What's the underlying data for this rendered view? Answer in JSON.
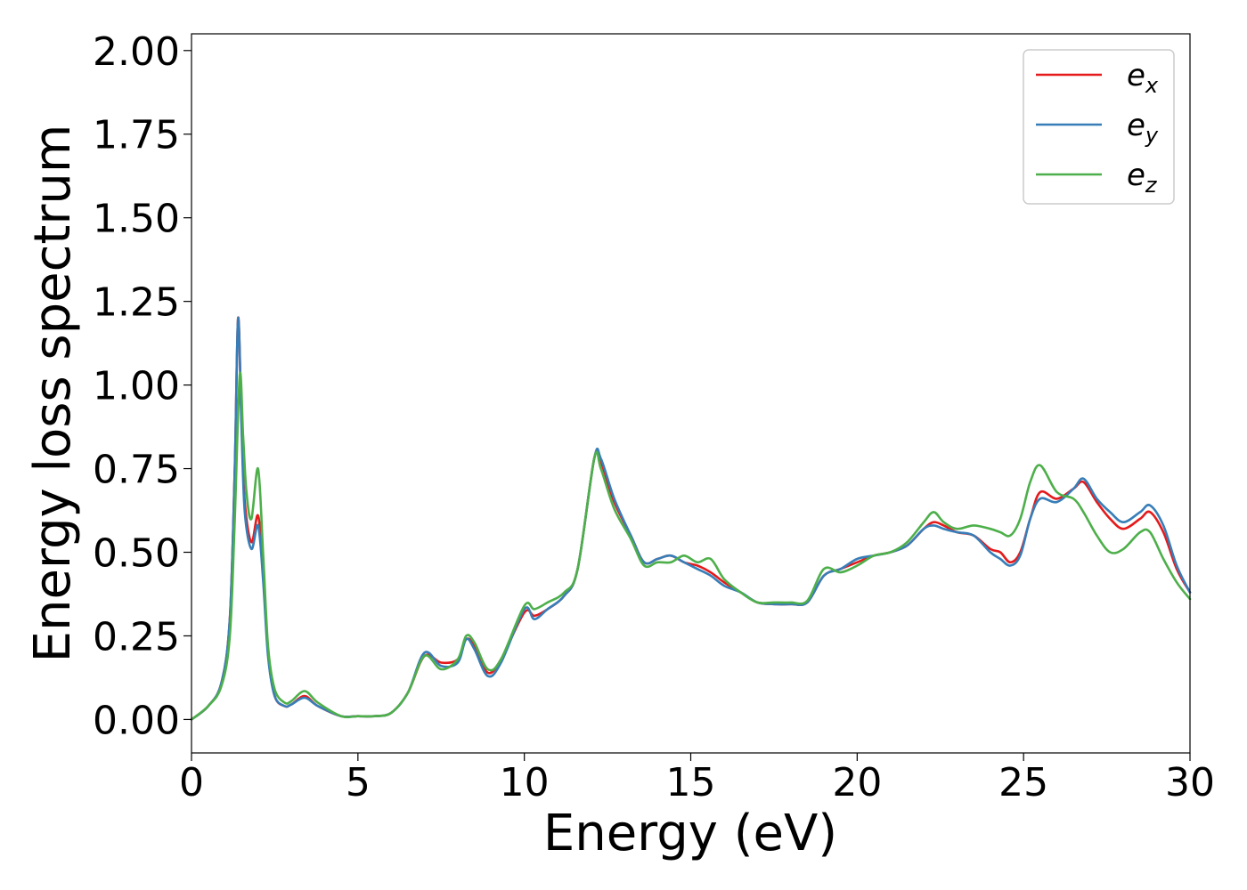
{
  "chart_data": {
    "type": "line",
    "title": "",
    "xlabel": "Energy (eV)",
    "ylabel": "Energy loss spectrum",
    "xlim": [
      0,
      30
    ],
    "ylim": [
      -0.1,
      2.05
    ],
    "xticks": [
      0,
      5,
      10,
      15,
      20,
      25,
      30
    ],
    "xtick_labels": [
      "0",
      "5",
      "10",
      "15",
      "20",
      "25",
      "30"
    ],
    "yticks": [
      0.0,
      0.25,
      0.5,
      0.75,
      1.0,
      1.25,
      1.5,
      1.75,
      2.0
    ],
    "ytick_labels": [
      "0.00",
      "0.25",
      "0.50",
      "0.75",
      "1.00",
      "1.25",
      "1.50",
      "1.75",
      "2.00"
    ],
    "grid": false,
    "legend_position": "top-right",
    "series": [
      {
        "name": "e_x",
        "label_base": "e",
        "label_sub": "x",
        "color": "#e41a1c",
        "x": [
          0,
          0.5,
          0.9,
          1.15,
          1.3,
          1.4,
          1.5,
          1.6,
          1.8,
          2.0,
          2.15,
          2.3,
          2.5,
          2.8,
          3.0,
          3.4,
          3.8,
          4.5,
          5.0,
          5.5,
          6.0,
          6.5,
          7.0,
          7.5,
          8.0,
          8.25,
          8.5,
          8.9,
          9.3,
          10.0,
          10.3,
          10.7,
          11.2,
          11.6,
          12.1,
          12.3,
          12.7,
          13.2,
          13.6,
          14.0,
          14.4,
          14.8,
          15.2,
          15.6,
          16.0,
          16.5,
          17.0,
          17.5,
          18.0,
          18.5,
          19.0,
          19.5,
          20.0,
          20.5,
          21.0,
          21.5,
          22.0,
          22.3,
          22.6,
          23.0,
          23.5,
          24.0,
          24.3,
          24.6,
          24.9,
          25.2,
          25.5,
          26.0,
          26.5,
          26.8,
          27.2,
          27.6,
          28.0,
          28.5,
          28.8,
          29.2,
          29.6,
          30.0
        ],
        "y": [
          0.0,
          0.04,
          0.11,
          0.3,
          0.75,
          1.2,
          0.9,
          0.65,
          0.53,
          0.61,
          0.45,
          0.2,
          0.07,
          0.04,
          0.045,
          0.07,
          0.04,
          0.01,
          0.01,
          0.01,
          0.02,
          0.08,
          0.19,
          0.17,
          0.18,
          0.24,
          0.22,
          0.14,
          0.18,
          0.32,
          0.31,
          0.33,
          0.37,
          0.45,
          0.78,
          0.77,
          0.65,
          0.55,
          0.47,
          0.48,
          0.49,
          0.47,
          0.46,
          0.44,
          0.41,
          0.38,
          0.35,
          0.345,
          0.345,
          0.35,
          0.43,
          0.45,
          0.47,
          0.49,
          0.5,
          0.52,
          0.57,
          0.59,
          0.58,
          0.56,
          0.55,
          0.51,
          0.5,
          0.47,
          0.5,
          0.6,
          0.68,
          0.66,
          0.69,
          0.71,
          0.65,
          0.6,
          0.57,
          0.6,
          0.62,
          0.56,
          0.45,
          0.38
        ]
      },
      {
        "name": "e_y",
        "label_base": "e",
        "label_sub": "y",
        "color": "#377eb8",
        "x": [
          0,
          0.5,
          0.9,
          1.15,
          1.3,
          1.4,
          1.5,
          1.6,
          1.8,
          2.0,
          2.15,
          2.3,
          2.5,
          2.8,
          3.0,
          3.4,
          3.8,
          4.5,
          5.0,
          5.5,
          6.0,
          6.5,
          7.0,
          7.5,
          8.0,
          8.25,
          8.5,
          8.9,
          9.3,
          10.0,
          10.3,
          10.7,
          11.2,
          11.6,
          12.1,
          12.3,
          12.7,
          13.2,
          13.6,
          14.0,
          14.4,
          14.8,
          15.2,
          15.6,
          16.0,
          16.5,
          17.0,
          17.5,
          18.0,
          18.5,
          19.0,
          19.5,
          20.0,
          20.5,
          21.0,
          21.5,
          22.0,
          22.3,
          22.6,
          23.0,
          23.5,
          24.0,
          24.3,
          24.6,
          24.9,
          25.2,
          25.5,
          26.0,
          26.5,
          26.8,
          27.2,
          27.6,
          28.0,
          28.5,
          28.8,
          29.2,
          29.6,
          30.0
        ],
        "y": [
          0.0,
          0.04,
          0.11,
          0.3,
          0.75,
          1.2,
          0.88,
          0.62,
          0.51,
          0.58,
          0.42,
          0.19,
          0.07,
          0.04,
          0.045,
          0.065,
          0.04,
          0.01,
          0.01,
          0.01,
          0.02,
          0.08,
          0.2,
          0.16,
          0.17,
          0.24,
          0.21,
          0.13,
          0.17,
          0.33,
          0.3,
          0.33,
          0.37,
          0.45,
          0.78,
          0.78,
          0.66,
          0.55,
          0.47,
          0.48,
          0.49,
          0.47,
          0.45,
          0.43,
          0.4,
          0.38,
          0.35,
          0.345,
          0.345,
          0.35,
          0.43,
          0.45,
          0.48,
          0.49,
          0.5,
          0.52,
          0.57,
          0.58,
          0.57,
          0.56,
          0.55,
          0.5,
          0.48,
          0.46,
          0.49,
          0.6,
          0.66,
          0.65,
          0.69,
          0.72,
          0.66,
          0.62,
          0.59,
          0.62,
          0.64,
          0.58,
          0.46,
          0.38
        ]
      },
      {
        "name": "e_z",
        "label_base": "e",
        "label_sub": "z",
        "color": "#4daf4a",
        "x": [
          0,
          0.5,
          0.9,
          1.15,
          1.3,
          1.45,
          1.55,
          1.65,
          1.8,
          2.0,
          2.15,
          2.3,
          2.5,
          2.8,
          3.0,
          3.4,
          3.8,
          4.5,
          5.0,
          5.5,
          6.0,
          6.5,
          7.0,
          7.5,
          8.0,
          8.25,
          8.5,
          8.9,
          9.3,
          10.0,
          10.3,
          10.7,
          11.2,
          11.6,
          12.1,
          12.3,
          12.7,
          13.2,
          13.6,
          14.0,
          14.4,
          14.8,
          15.2,
          15.6,
          16.0,
          16.5,
          17.0,
          17.5,
          18.0,
          18.5,
          19.0,
          19.5,
          20.0,
          20.5,
          21.0,
          21.5,
          22.0,
          22.3,
          22.6,
          23.0,
          23.5,
          24.0,
          24.3,
          24.6,
          24.9,
          25.2,
          25.5,
          26.0,
          26.5,
          26.8,
          27.2,
          27.6,
          28.0,
          28.5,
          28.8,
          29.2,
          29.6,
          30.0
        ],
        "y": [
          0.0,
          0.04,
          0.1,
          0.25,
          0.6,
          1.03,
          0.85,
          0.68,
          0.6,
          0.75,
          0.5,
          0.22,
          0.09,
          0.05,
          0.055,
          0.085,
          0.05,
          0.01,
          0.01,
          0.01,
          0.02,
          0.08,
          0.19,
          0.15,
          0.18,
          0.25,
          0.23,
          0.15,
          0.18,
          0.34,
          0.33,
          0.35,
          0.38,
          0.45,
          0.78,
          0.75,
          0.63,
          0.54,
          0.46,
          0.47,
          0.47,
          0.49,
          0.47,
          0.48,
          0.42,
          0.38,
          0.35,
          0.35,
          0.35,
          0.355,
          0.45,
          0.44,
          0.46,
          0.49,
          0.5,
          0.53,
          0.59,
          0.62,
          0.59,
          0.57,
          0.58,
          0.57,
          0.56,
          0.55,
          0.6,
          0.71,
          0.76,
          0.68,
          0.66,
          0.62,
          0.55,
          0.5,
          0.51,
          0.56,
          0.56,
          0.48,
          0.41,
          0.36
        ]
      }
    ]
  }
}
